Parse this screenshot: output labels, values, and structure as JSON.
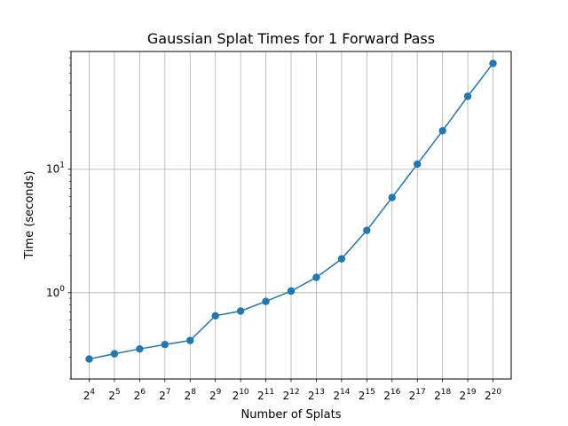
{
  "chart_data": {
    "type": "line",
    "title": "Gaussian Splat Times for 1 Forward Pass",
    "xlabel": "Number of Splats",
    "ylabel": "Time (seconds)",
    "x_scale": "log2",
    "y_scale": "log10",
    "x": [
      16,
      32,
      64,
      128,
      256,
      512,
      1024,
      2048,
      4096,
      8192,
      16384,
      32768,
      65536,
      131072,
      262144,
      524288,
      1048576
    ],
    "x_tick_labels": [
      {
        "base": "2",
        "exp": "4"
      },
      {
        "base": "2",
        "exp": "5"
      },
      {
        "base": "2",
        "exp": "6"
      },
      {
        "base": "2",
        "exp": "7"
      },
      {
        "base": "2",
        "exp": "8"
      },
      {
        "base": "2",
        "exp": "9"
      },
      {
        "base": "2",
        "exp": "10"
      },
      {
        "base": "2",
        "exp": "11"
      },
      {
        "base": "2",
        "exp": "12"
      },
      {
        "base": "2",
        "exp": "13"
      },
      {
        "base": "2",
        "exp": "14"
      },
      {
        "base": "2",
        "exp": "15"
      },
      {
        "base": "2",
        "exp": "16"
      },
      {
        "base": "2",
        "exp": "17"
      },
      {
        "base": "2",
        "exp": "18"
      },
      {
        "base": "2",
        "exp": "19"
      },
      {
        "base": "2",
        "exp": "20"
      }
    ],
    "y_ticks": [
      {
        "value": 1,
        "base": "10",
        "exp": "0"
      },
      {
        "value": 10,
        "base": "10",
        "exp": "1"
      }
    ],
    "ylim": [
      0.2,
      90
    ],
    "series": [
      {
        "color": "#1f77b4",
        "marker": "circle",
        "values": [
          0.29,
          0.32,
          0.35,
          0.38,
          0.41,
          0.65,
          0.71,
          0.85,
          1.03,
          1.33,
          1.88,
          3.2,
          5.9,
          11.0,
          20.5,
          39.0,
          72.0
        ]
      }
    ],
    "grid": true,
    "legend": "none"
  }
}
